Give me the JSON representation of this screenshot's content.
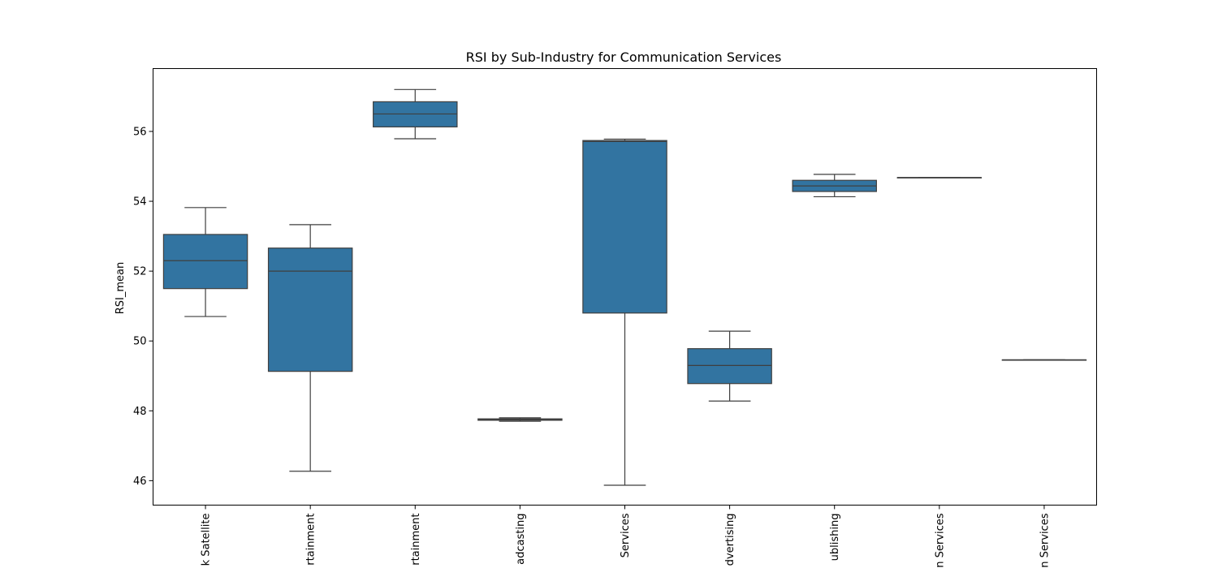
{
  "chart_data": {
    "type": "box",
    "title": "RSI by Sub-Industry for Communication Services",
    "xlabel": "",
    "ylabel": "RSI_mean",
    "ylim": [
      45.3,
      57.8
    ],
    "yticks": [
      46,
      48,
      50,
      52,
      54,
      56
    ],
    "grid": false,
    "legend": "none",
    "box_color": "#3274a1",
    "line_color": "#3f3f3f",
    "categories": [
      "Cable & Satellite",
      "Movies & Entertainment",
      "Interactive Home Entertainment",
      "Broadcasting",
      "Interactive Media & Services",
      "Advertising",
      "Publishing",
      "Integrated Telecommunication Services",
      "Wireless Telecommunication Services"
    ],
    "category_labels_visible": [
      "k Satellite",
      "rtainment",
      "rtainment",
      "adcasting",
      "Services",
      "dvertising",
      "ublishing",
      "n Services",
      "n Services"
    ],
    "boxes": [
      {
        "whisker_low": 50.7,
        "q1": 51.5,
        "median": 52.3,
        "q3": 53.05,
        "whisker_high": 53.82
      },
      {
        "whisker_low": 46.27,
        "q1": 49.13,
        "median": 52.0,
        "q3": 52.66,
        "whisker_high": 53.33
      },
      {
        "whisker_low": 55.79,
        "q1": 56.13,
        "median": 56.5,
        "q3": 56.85,
        "whisker_high": 57.2
      },
      {
        "whisker_low": 47.7,
        "q1": 47.73,
        "median": 47.75,
        "q3": 47.77,
        "whisker_high": 47.8
      },
      {
        "whisker_low": 45.87,
        "q1": 50.8,
        "median": 55.71,
        "q3": 55.74,
        "whisker_high": 55.78
      },
      {
        "whisker_low": 48.28,
        "q1": 48.78,
        "median": 49.3,
        "q3": 49.78,
        "whisker_high": 50.28
      },
      {
        "whisker_low": 54.13,
        "q1": 54.28,
        "median": 54.44,
        "q3": 54.6,
        "whisker_high": 54.77
      },
      {
        "whisker_low": 54.68,
        "q1": 54.68,
        "median": 54.68,
        "q3": 54.68,
        "whisker_high": 54.68
      },
      {
        "whisker_low": 49.46,
        "q1": 49.46,
        "median": 49.46,
        "q3": 49.46,
        "whisker_high": 49.46
      }
    ]
  }
}
